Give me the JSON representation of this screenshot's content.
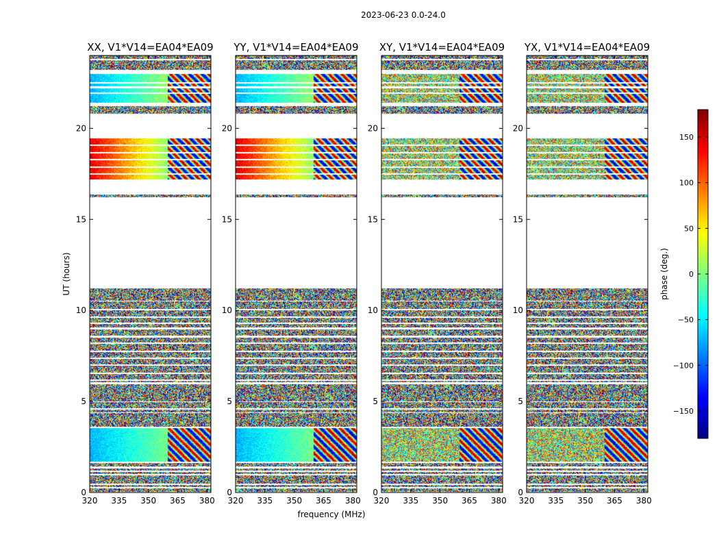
{
  "figure": {
    "suptitle": "2023-06-23 0.0-24.0",
    "xlabel": "frequency (MHz)",
    "ylabel": "UT (hours)"
  },
  "chart_data": [
    {
      "type": "heatmap",
      "title": "XX, V1*V14=EA04*EA09",
      "xlim": [
        320,
        382
      ],
      "ylim": [
        0,
        24
      ],
      "xticks": [
        "320",
        "335",
        "350",
        "365",
        "380"
      ],
      "xtick_values": [
        320,
        335,
        350,
        365,
        380
      ],
      "yticks": [
        "0",
        "5",
        "10",
        "15",
        "20"
      ],
      "ytick_values": [
        0,
        5,
        10,
        15,
        20
      ],
      "pattern": "parallel"
    },
    {
      "type": "heatmap",
      "title": "YY, V1*V14=EA04*EA09",
      "xlim": [
        320,
        382
      ],
      "ylim": [
        0,
        24
      ],
      "xticks": [
        "320",
        "335",
        "350",
        "365",
        "380"
      ],
      "xtick_values": [
        320,
        335,
        350,
        365,
        380
      ],
      "yticks": [
        "0",
        "5",
        "10",
        "15",
        "20"
      ],
      "ytick_values": [
        0,
        5,
        10,
        15,
        20
      ],
      "pattern": "parallel"
    },
    {
      "type": "heatmap",
      "title": "XY, V1*V14=EA04*EA09",
      "xlim": [
        320,
        382
      ],
      "ylim": [
        0,
        24
      ],
      "xticks": [
        "320",
        "335",
        "350",
        "365",
        "380"
      ],
      "xtick_values": [
        320,
        335,
        350,
        365,
        380
      ],
      "yticks": [
        "0",
        "5",
        "10",
        "15",
        "20"
      ],
      "ytick_values": [
        0,
        5,
        10,
        15,
        20
      ],
      "pattern": "cross"
    },
    {
      "type": "heatmap",
      "title": "YX, V1*V14=EA04*EA09",
      "xlim": [
        320,
        382
      ],
      "ylim": [
        0,
        24
      ],
      "xticks": [
        "320",
        "335",
        "350",
        "365",
        "380"
      ],
      "xtick_values": [
        320,
        335,
        350,
        365,
        380
      ],
      "yticks": [
        "0",
        "5",
        "10",
        "15",
        "20"
      ],
      "ytick_values": [
        0,
        5,
        10,
        15,
        20
      ],
      "pattern": "cross"
    }
  ],
  "data_bands_hours": [
    [
      0.05,
      0.22
    ],
    [
      0.3,
      0.42
    ],
    [
      0.5,
      0.95
    ],
    [
      1.02,
      1.12
    ],
    [
      1.2,
      1.32
    ],
    [
      1.42,
      1.62
    ],
    [
      1.7,
      3.55
    ],
    [
      3.62,
      4.35
    ],
    [
      4.42,
      4.55
    ],
    [
      4.62,
      4.95
    ],
    [
      5.02,
      5.95
    ],
    [
      6.05,
      6.15
    ],
    [
      6.22,
      6.5
    ],
    [
      6.58,
      6.95
    ],
    [
      7.02,
      7.35
    ],
    [
      7.42,
      7.72
    ],
    [
      7.8,
      8.15
    ],
    [
      8.22,
      8.5
    ],
    [
      8.6,
      8.95
    ],
    [
      9.05,
      9.25
    ],
    [
      9.32,
      9.58
    ],
    [
      9.68,
      10.0
    ],
    [
      10.08,
      10.48
    ],
    [
      10.55,
      11.2
    ],
    [
      16.2,
      16.38
    ],
    [
      17.2,
      17.45
    ],
    [
      17.52,
      17.82
    ],
    [
      17.9,
      18.25
    ],
    [
      18.32,
      18.62
    ],
    [
      18.7,
      19.05
    ],
    [
      19.12,
      19.45
    ],
    [
      20.8,
      21.22
    ],
    [
      21.4,
      21.88
    ],
    [
      21.96,
      22.2
    ],
    [
      22.3,
      22.45
    ],
    [
      22.52,
      22.98
    ],
    [
      23.2,
      23.72
    ],
    [
      23.8,
      24.0
    ]
  ],
  "calibrator_scans_hours": [
    [
      1.7,
      3.55
    ],
    [
      17.2,
      19.45
    ],
    [
      21.4,
      22.98
    ]
  ],
  "colorbar": {
    "label": "phase (deg.)",
    "range": [
      -180,
      180
    ],
    "tick_values": [
      -150,
      -100,
      -50,
      0,
      50,
      100,
      150
    ],
    "tick_labels": [
      "−150",
      "−100",
      "−50",
      "0",
      "50",
      "100",
      "150"
    ],
    "colormap": "jet",
    "jet_stops": [
      "#00007f",
      "#0000ff",
      "#007fff",
      "#00ffff",
      "#7fff7f",
      "#ffff00",
      "#ff7f00",
      "#ff0000",
      "#7f0000"
    ]
  }
}
